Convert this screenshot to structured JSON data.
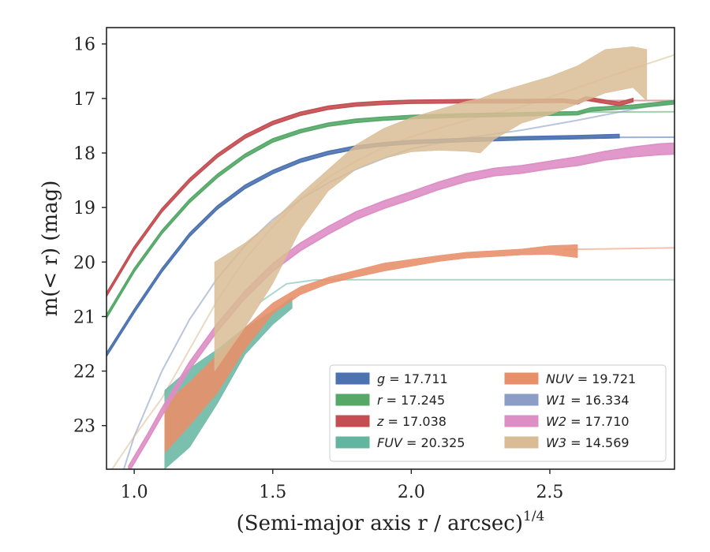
{
  "chart_data": {
    "type": "line",
    "title": "",
    "xlabel": "(Semi-major axis r / arcsec)",
    "xlabel_italic": "r",
    "xlabel_superscript": "1/4",
    "ylabel": "m(< r) (mag)",
    "xlim": [
      0.9,
      2.95
    ],
    "ylim": [
      23.8,
      15.7
    ],
    "y_inverted": true,
    "xticks": [
      1.0,
      1.5,
      2.0,
      2.5
    ],
    "xtick_labels": [
      "1.0",
      "1.5",
      "2.0",
      "2.5"
    ],
    "yticks": [
      16,
      17,
      18,
      19,
      20,
      21,
      22,
      23
    ],
    "ytick_labels": [
      "16",
      "17",
      "18",
      "19",
      "20",
      "21",
      "22",
      "23"
    ],
    "grid": false,
    "legend_position": "lower-right",
    "series": [
      {
        "name": "g",
        "legend_value": "17.711",
        "color": "#4c72b0",
        "kind": "band",
        "x": [
          0.9,
          1.0,
          1.1,
          1.2,
          1.3,
          1.4,
          1.5,
          1.6,
          1.7,
          1.8,
          1.9,
          2.0,
          2.2,
          2.4,
          2.6,
          2.75
        ],
        "y": [
          21.7,
          20.9,
          20.15,
          19.5,
          19.0,
          18.62,
          18.35,
          18.14,
          18.0,
          17.9,
          17.84,
          17.8,
          17.76,
          17.73,
          17.71,
          17.69
        ],
        "half_width": [
          0.03,
          0.03,
          0.03,
          0.03,
          0.03,
          0.03,
          0.03,
          0.03,
          0.03,
          0.03,
          0.03,
          0.03,
          0.03,
          0.03,
          0.03,
          0.03
        ],
        "model_x": [
          2.2,
          2.95
        ],
        "model_y": [
          17.72,
          17.71
        ]
      },
      {
        "name": "r",
        "legend_value": "17.245",
        "color": "#55a868",
        "kind": "band",
        "x": [
          0.9,
          1.0,
          1.1,
          1.2,
          1.3,
          1.4,
          1.5,
          1.6,
          1.7,
          1.8,
          1.9,
          2.0,
          2.2,
          2.4,
          2.6,
          2.65,
          2.8,
          2.95
        ],
        "y": [
          21.0,
          20.15,
          19.45,
          18.88,
          18.42,
          18.05,
          17.77,
          17.6,
          17.48,
          17.41,
          17.37,
          17.34,
          17.31,
          17.29,
          17.27,
          17.2,
          17.15,
          17.07
        ],
        "half_width": [
          0.03,
          0.03,
          0.03,
          0.03,
          0.03,
          0.03,
          0.03,
          0.03,
          0.03,
          0.03,
          0.03,
          0.03,
          0.03,
          0.03,
          0.03,
          0.03,
          0.03,
          0.03
        ],
        "model_x": [
          2.6,
          2.95
        ],
        "model_y": [
          17.25,
          17.245
        ]
      },
      {
        "name": "z",
        "legend_value": "17.038",
        "color": "#c44e52",
        "kind": "band",
        "x": [
          0.9,
          1.0,
          1.1,
          1.2,
          1.3,
          1.4,
          1.5,
          1.6,
          1.7,
          1.8,
          1.9,
          2.0,
          2.2,
          2.4,
          2.55,
          2.6,
          2.63,
          2.7,
          2.75,
          2.8
        ],
        "y": [
          20.6,
          19.75,
          19.05,
          18.5,
          18.05,
          17.7,
          17.45,
          17.28,
          17.17,
          17.11,
          17.08,
          17.06,
          17.05,
          17.05,
          17.04,
          17.07,
          17.0,
          17.06,
          17.1,
          17.03
        ],
        "half_width": [
          0.03,
          0.03,
          0.03,
          0.03,
          0.03,
          0.03,
          0.03,
          0.03,
          0.03,
          0.03,
          0.03,
          0.03,
          0.03,
          0.03,
          0.03,
          0.03,
          0.03,
          0.03,
          0.03,
          0.03
        ],
        "model_x": [
          2.5,
          2.95
        ],
        "model_y": [
          17.04,
          17.038
        ]
      },
      {
        "name": "FUV",
        "legend_value": "20.325",
        "color": "#64b5a0",
        "kind": "band",
        "x": [
          1.11,
          1.2,
          1.3,
          1.4,
          1.5,
          1.57
        ],
        "y_top": [
          22.35,
          21.95,
          21.6,
          21.2,
          20.9,
          20.65
        ],
        "y_bottom": [
          23.8,
          23.4,
          22.6,
          21.7,
          21.15,
          20.85
        ],
        "model_x": [
          1.45,
          1.55,
          1.65,
          1.75,
          2.95
        ],
        "model_y": [
          20.75,
          20.4,
          20.33,
          20.325,
          20.325
        ]
      },
      {
        "name": "NUV",
        "legend_value": "19.721",
        "color": "#e8906a",
        "kind": "band",
        "x": [
          1.11,
          1.2,
          1.3,
          1.4,
          1.5,
          1.6,
          1.7,
          1.8,
          1.9,
          2.0,
          2.1,
          2.2,
          2.3,
          2.4,
          2.5,
          2.6
        ],
        "y_top": [
          22.6,
          22.2,
          21.7,
          21.2,
          20.75,
          20.45,
          20.28,
          20.15,
          20.02,
          19.95,
          19.88,
          19.82,
          19.79,
          19.76,
          19.7,
          19.68
        ],
        "y_bottom": [
          23.5,
          23.0,
          22.4,
          21.6,
          20.95,
          20.6,
          20.4,
          20.28,
          20.17,
          20.08,
          19.99,
          19.93,
          19.9,
          19.87,
          19.86,
          19.92
        ],
        "model_x": [
          2.55,
          2.95
        ],
        "model_y": [
          19.77,
          19.74
        ]
      },
      {
        "name": "W1",
        "legend_value": "16.334",
        "color": "#8c9ec6",
        "kind": "model",
        "model_x": [
          0.95,
          1.0,
          1.1,
          1.2,
          1.3,
          1.4,
          1.5,
          1.6,
          1.7,
          1.8,
          1.9,
          2.0,
          2.2,
          2.4,
          2.6,
          2.8,
          2.95
        ],
        "model_y": [
          24.0,
          23.2,
          22.0,
          21.05,
          20.3,
          19.7,
          19.22,
          18.85,
          18.55,
          18.3,
          18.1,
          17.92,
          17.72,
          17.58,
          17.4,
          17.2,
          17.06
        ]
      },
      {
        "name": "W2",
        "legend_value": "17.710",
        "color": "#dd8ec4",
        "kind": "band",
        "x": [
          0.98,
          1.05,
          1.1,
          1.2,
          1.3,
          1.4,
          1.5,
          1.6,
          1.7,
          1.8,
          1.9,
          2.0,
          2.1,
          2.2,
          2.3,
          2.4,
          2.5,
          2.6,
          2.7,
          2.8,
          2.9,
          2.95
        ],
        "y": [
          23.8,
          23.2,
          22.75,
          21.9,
          21.2,
          20.6,
          20.1,
          19.72,
          19.42,
          19.15,
          18.95,
          18.78,
          18.6,
          18.45,
          18.35,
          18.3,
          18.22,
          18.15,
          18.05,
          17.98,
          17.93,
          17.92
        ],
        "half_width": [
          0.06,
          0.06,
          0.07,
          0.07,
          0.07,
          0.07,
          0.07,
          0.07,
          0.07,
          0.07,
          0.07,
          0.07,
          0.07,
          0.07,
          0.07,
          0.07,
          0.07,
          0.08,
          0.08,
          0.09,
          0.1,
          0.1
        ],
        "model_x": [],
        "model_y": []
      },
      {
        "name": "W3",
        "legend_value": "14.569",
        "color": "#d9bc94",
        "kind": "band",
        "x": [
          1.29,
          1.4,
          1.5,
          1.6,
          1.7,
          1.8,
          1.9,
          2.0,
          2.1,
          2.2,
          2.25,
          2.3,
          2.4,
          2.5,
          2.6,
          2.7,
          2.8,
          2.85
        ],
        "y_top": [
          20.0,
          19.65,
          19.25,
          18.75,
          18.3,
          17.85,
          17.55,
          17.35,
          17.2,
          17.05,
          17.0,
          16.9,
          16.75,
          16.6,
          16.4,
          16.1,
          16.05,
          16.1
        ],
        "y_bottom": [
          22.0,
          21.2,
          20.4,
          19.4,
          18.7,
          18.3,
          18.1,
          17.98,
          17.95,
          17.97,
          18.0,
          17.75,
          17.45,
          17.3,
          17.1,
          16.9,
          16.8,
          17.05
        ],
        "model_x": [
          0.92,
          1.0,
          1.1,
          1.2,
          1.3,
          1.4,
          1.5,
          1.6,
          1.7,
          1.8,
          1.9,
          2.0,
          2.2,
          2.4,
          2.6,
          2.8,
          2.95
        ],
        "model_y": [
          23.8,
          23.2,
          22.5,
          21.6,
          20.7,
          19.95,
          19.35,
          18.85,
          18.45,
          18.15,
          17.9,
          17.7,
          17.4,
          17.15,
          16.8,
          16.45,
          16.2
        ]
      }
    ]
  }
}
